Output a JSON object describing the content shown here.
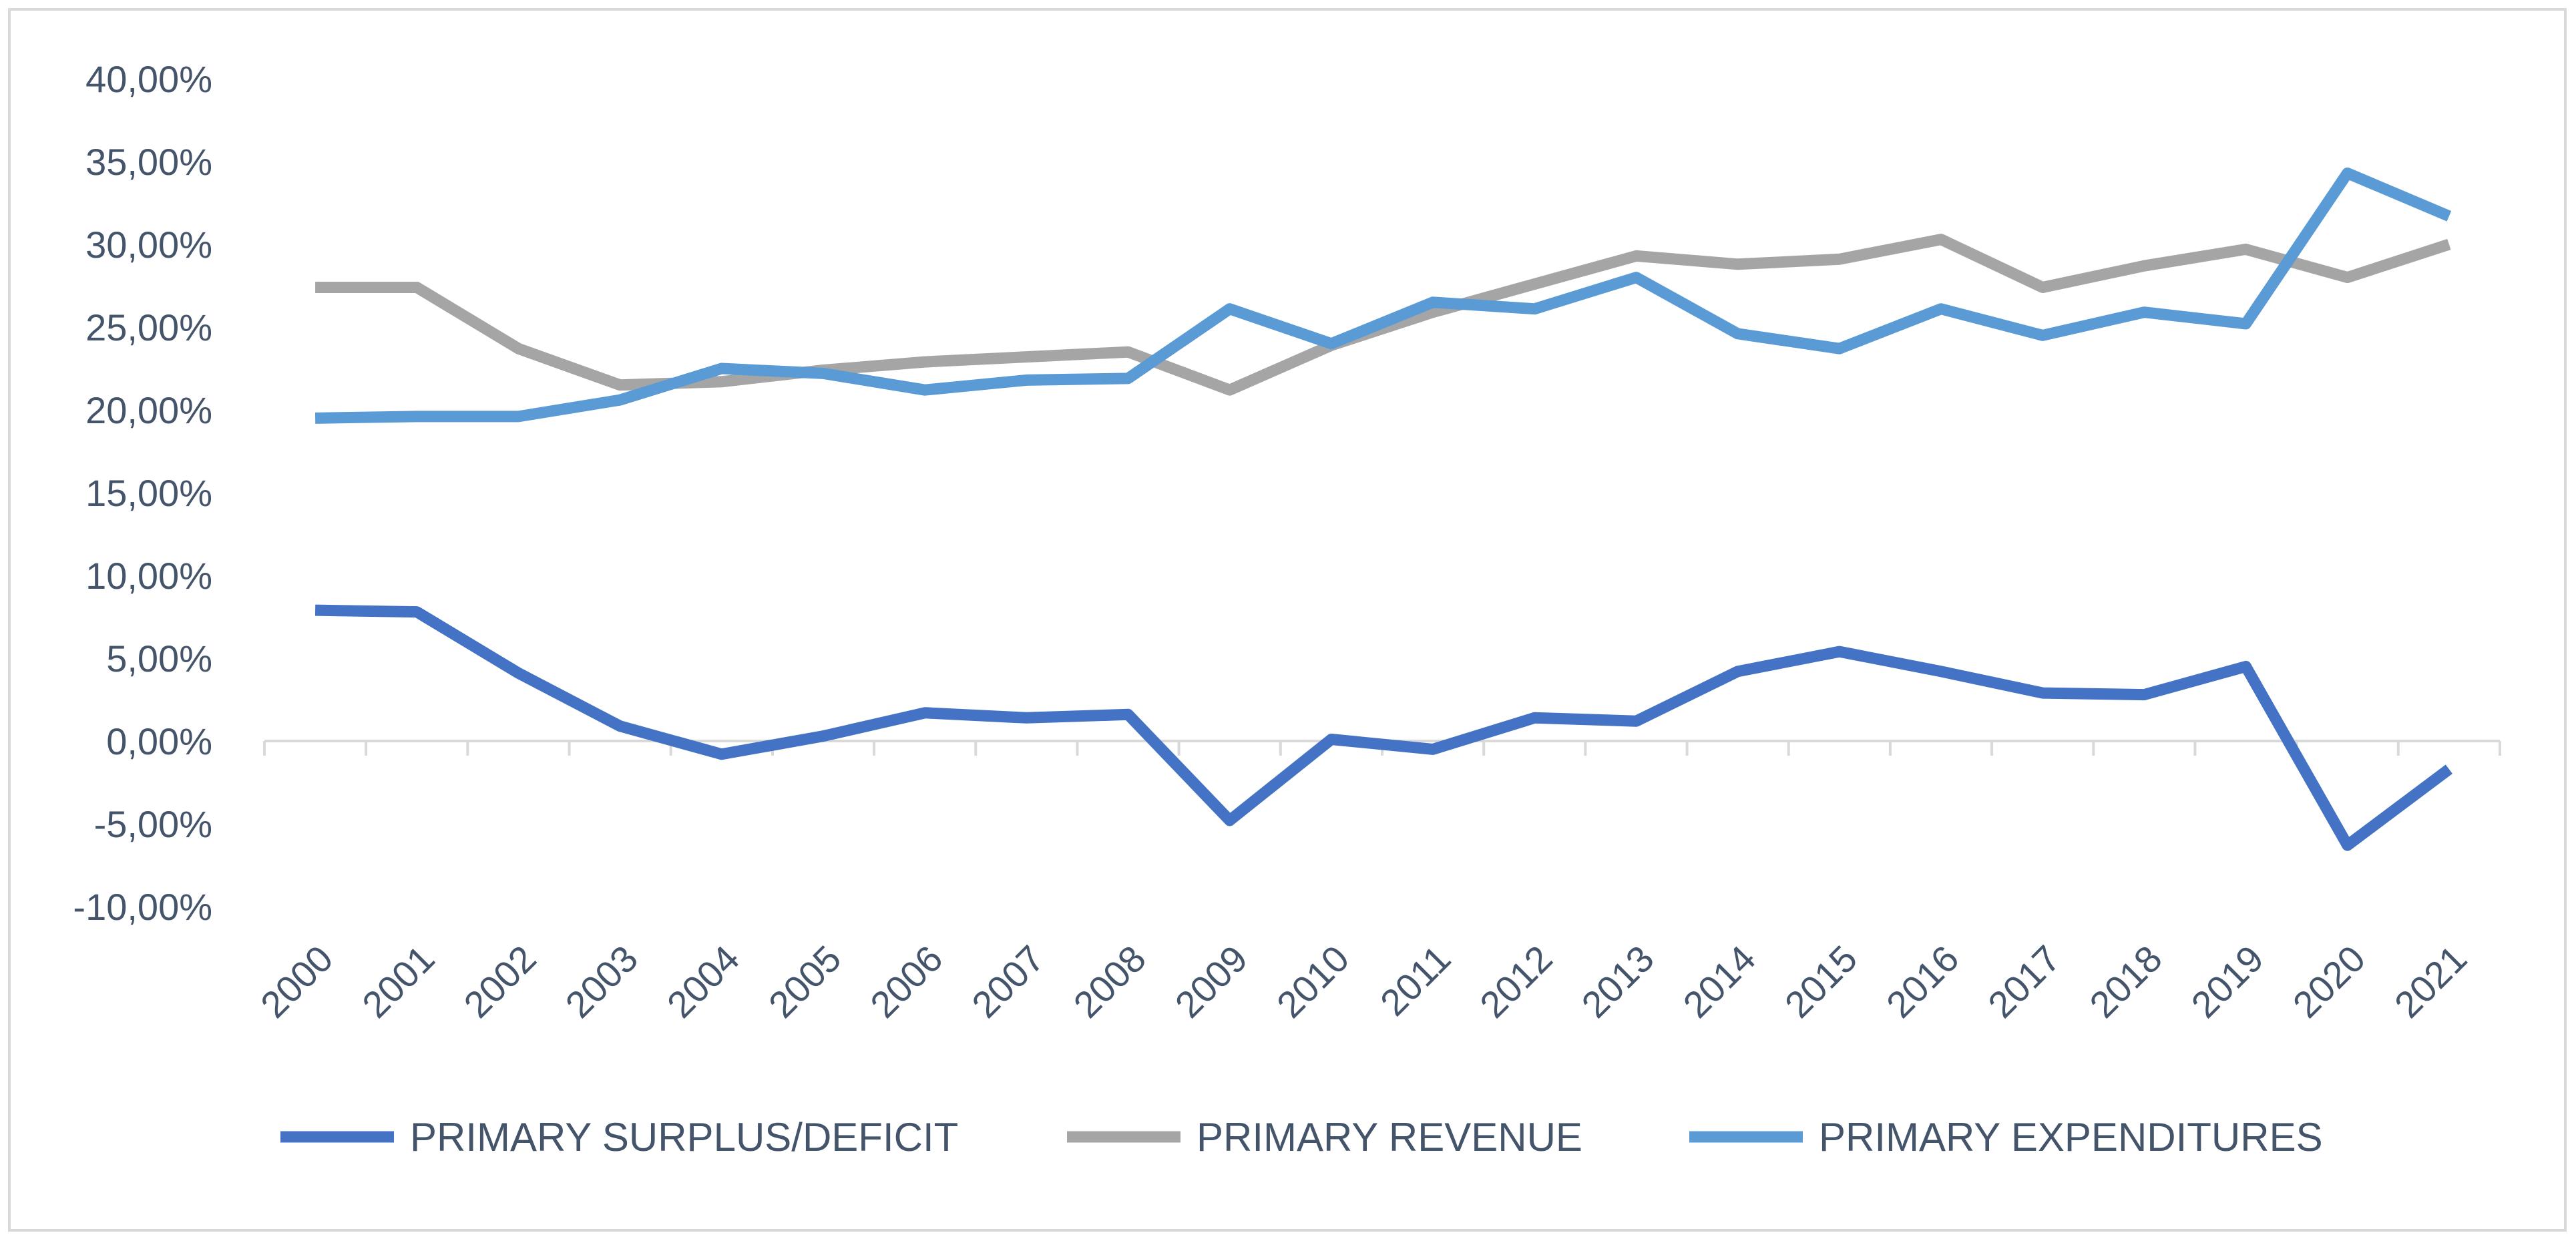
{
  "chart_data": {
    "type": "line",
    "title": "",
    "xlabel": "",
    "ylabel": "",
    "categories": [
      "2000",
      "2001",
      "2002",
      "2003",
      "2004",
      "2005",
      "2006",
      "2007",
      "2008",
      "2009",
      "2010",
      "2011",
      "2012",
      "2013",
      "2014",
      "2015",
      "2016",
      "2017",
      "2018",
      "2019",
      "2020",
      "2021"
    ],
    "ylim": [
      -10,
      40
    ],
    "yticks": [
      -10,
      -5,
      0,
      5,
      10,
      15,
      20,
      25,
      30,
      35,
      40
    ],
    "ytick_labels": [
      "-10,00%",
      "-5,00%",
      "0,00%",
      "5,00%",
      "10,00%",
      "15,00%",
      "20,00%",
      "25,00%",
      "30,00%",
      "35,00%",
      "40,00%"
    ],
    "grid": false,
    "legend_position": "bottom",
    "series": [
      {
        "name": "PRIMARY SURPLUS/DEFICIT",
        "color": "#4472c4",
        "values": [
          7.9,
          7.8,
          4.1,
          0.9,
          -0.8,
          0.3,
          1.7,
          1.4,
          1.6,
          -4.8,
          0.1,
          -0.5,
          1.4,
          1.2,
          4.2,
          5.4,
          4.2,
          2.9,
          2.8,
          4.5,
          -6.3,
          -1.7
        ]
      },
      {
        "name": "PRIMARY REVENUE",
        "color": "#a5a5a5",
        "values": [
          27.4,
          27.4,
          23.7,
          21.5,
          21.7,
          22.4,
          22.9,
          23.2,
          23.5,
          21.2,
          23.9,
          25.9,
          27.6,
          29.3,
          28.8,
          29.1,
          30.3,
          27.4,
          28.7,
          29.7,
          28.0,
          30.0
        ]
      },
      {
        "name": "PRIMARY EXPENDITURES",
        "color": "#5b9bd5",
        "values": [
          19.5,
          19.6,
          19.6,
          20.6,
          22.5,
          22.2,
          21.2,
          21.8,
          21.9,
          26.1,
          24.0,
          26.5,
          26.1,
          28.0,
          24.6,
          23.7,
          26.1,
          24.5,
          25.9,
          25.2,
          34.3,
          31.7
        ]
      }
    ]
  }
}
